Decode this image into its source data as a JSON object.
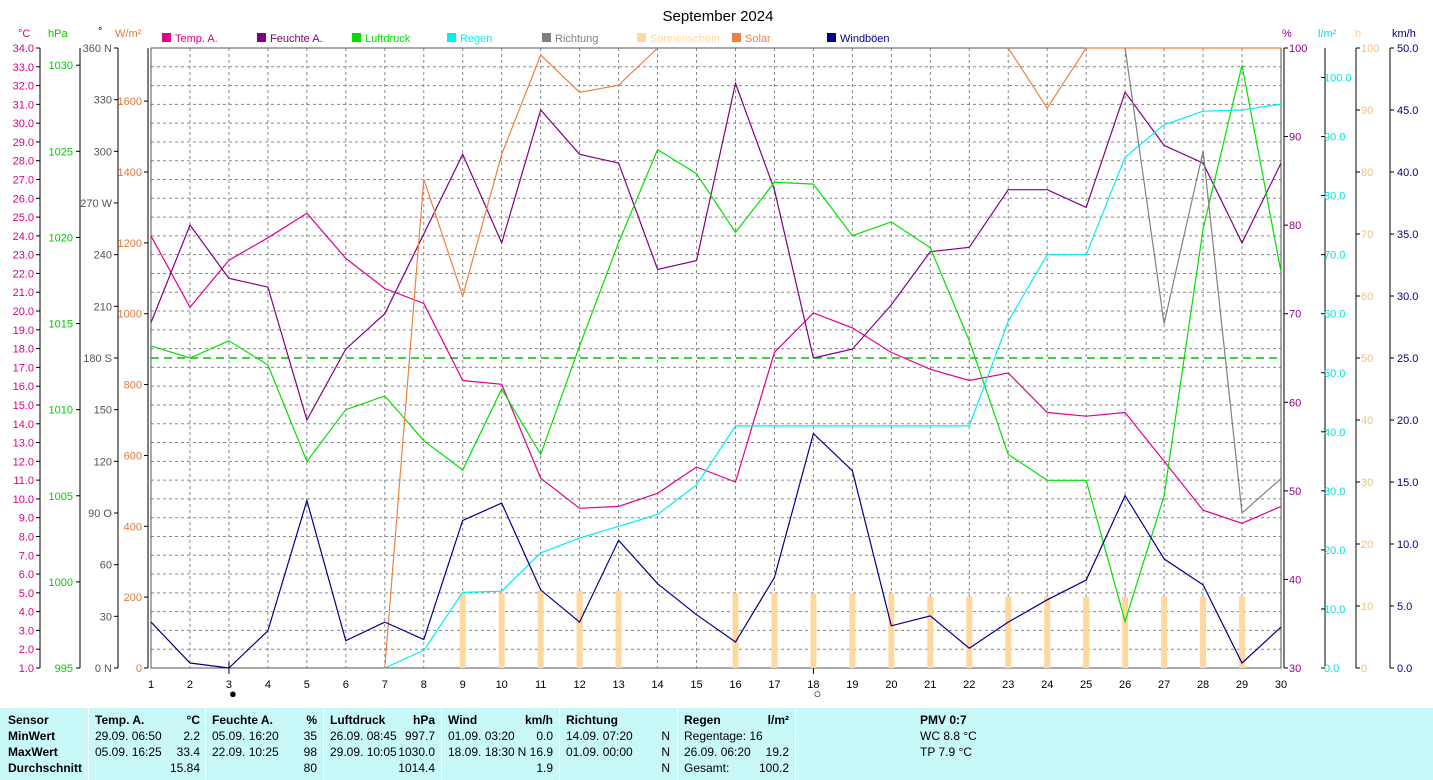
{
  "title": "September 2024",
  "axes": {
    "temp": {
      "unit": "°C",
      "color": "#e0008c",
      "min": 1.0,
      "max": 34.0,
      "step": 1.0
    },
    "pressure": {
      "unit": "hPa",
      "color": "#00cc00",
      "ticks": [
        995,
        1000,
        1005,
        1010,
        1015,
        1020,
        1025,
        1030
      ],
      "min": 995,
      "max": 1031
    },
    "direction": {
      "unit": "°",
      "ticks": [
        "0 N",
        "30",
        "60",
        "90 O",
        "120",
        "150",
        "180 S",
        "210",
        "240",
        "270 W",
        "300",
        "330",
        "360 N"
      ]
    },
    "solar": {
      "unit": "W/m²",
      "color": "#e0783c",
      "ticks": [
        0,
        200,
        400,
        600,
        800,
        1000,
        1200,
        1400,
        1600
      ],
      "max": 1750
    },
    "humidity": {
      "unit": "%",
      "color": "#8c008c",
      "ticks": [
        30,
        40,
        50,
        60,
        70,
        80,
        90,
        100
      ]
    },
    "rain": {
      "unit": "l/m²",
      "color": "#00e0e0",
      "ticks": [
        "0.0",
        "10.0",
        "20.0",
        "30.0",
        "40.0",
        "50.0",
        "60.0",
        "70.0",
        "80.0",
        "90.0",
        "100.0"
      ]
    },
    "sunshine": {
      "unit": "h",
      "color": "#ffd090",
      "ticks": [
        0,
        10,
        20,
        30,
        40,
        50,
        60,
        70,
        80,
        90,
        100
      ]
    },
    "gust": {
      "unit": "km/h",
      "color": "#000080",
      "ticks": [
        "0.0",
        "5.0",
        "10.0",
        "15.0",
        "20.0",
        "25.0",
        "30.0",
        "35.0",
        "40.0",
        "45.0",
        "50.0"
      ]
    }
  },
  "legend": [
    {
      "label": "Temp. A.",
      "color": "#e0008c"
    },
    {
      "label": "Feuchte A.",
      "color": "#800080"
    },
    {
      "label": "Luftdruck",
      "color": "#00e000"
    },
    {
      "label": "Regen",
      "color": "#00f0f0"
    },
    {
      "label": "Richtung",
      "color": "#808080"
    },
    {
      "label": "Sonnenschein",
      "color": "#ffd8a0"
    },
    {
      "label": "Solar",
      "color": "#f08040"
    },
    {
      "label": "Windböen",
      "color": "#000090"
    }
  ],
  "chart_data": {
    "type": "line",
    "title": "September 2024",
    "x": [
      1,
      2,
      3,
      4,
      5,
      6,
      7,
      8,
      9,
      10,
      11,
      12,
      13,
      14,
      15,
      16,
      17,
      18,
      19,
      20,
      21,
      22,
      23,
      24,
      25,
      26,
      27,
      28,
      29,
      30
    ],
    "series": [
      {
        "name": "Temp. A.",
        "color": "#e0008c",
        "axis": "temp",
        "values": [
          24.0,
          20.2,
          22.7,
          23.9,
          25.2,
          22.8,
          21.2,
          20.4,
          16.3,
          16.1,
          11.1,
          9.5,
          9.6,
          10.3,
          11.7,
          10.9,
          17.8,
          19.9,
          19.1,
          17.8,
          16.9,
          16.3,
          16.7,
          14.6,
          14.4,
          14.6,
          12.0,
          9.4,
          8.7,
          9.6
        ]
      },
      {
        "name": "Feuchte A.",
        "color": "#800080",
        "axis": "humidity",
        "values": [
          69,
          80,
          74,
          73,
          58,
          66,
          70,
          79,
          88,
          78,
          93,
          88,
          87,
          75,
          76,
          96,
          84,
          65,
          66,
          71,
          77,
          77.5,
          84,
          84,
          82,
          95,
          89,
          87,
          78,
          87
        ]
      },
      {
        "name": "Luftdruck",
        "color": "#00e000",
        "axis": "pressure",
        "values": [
          1013.7,
          1013.0,
          1014.0,
          1012.6,
          1007.0,
          1010.0,
          1010.8,
          1008.2,
          1006.5,
          1011.2,
          1007.4,
          1013.7,
          1019.7,
          1025.1,
          1023.7,
          1020.3,
          1023.2,
          1023.1,
          1020.1,
          1020.9,
          1019.4,
          1014.0,
          1007.4,
          1005.9,
          1005.9,
          997.7,
          1005.0,
          1020.5,
          1030.0,
          1018.0
        ]
      },
      {
        "name": "Regen",
        "color": "#00f0f0",
        "axis": "rain",
        "values": [
          null,
          null,
          null,
          null,
          null,
          null,
          0.0,
          3.0,
          12.8,
          13.0,
          19.5,
          22.0,
          24.0,
          26.0,
          31.0,
          41.0,
          41.0,
          41.0,
          41.0,
          41.0,
          41.0,
          41.0,
          58.7,
          70.0,
          70.0,
          86.5,
          92.0,
          94.3,
          94.5,
          95.5
        ]
      },
      {
        "name": "Richtung",
        "color": "#808080",
        "axis": "direction",
        "values": [
          null,
          null,
          null,
          null,
          null,
          null,
          null,
          null,
          null,
          null,
          null,
          null,
          null,
          null,
          null,
          null,
          null,
          null,
          null,
          null,
          null,
          null,
          null,
          null,
          null,
          360,
          200,
          300,
          90,
          110
        ]
      },
      {
        "name": "Solar",
        "color": "#f08040",
        "axis": "solar",
        "values": [
          null,
          null,
          null,
          null,
          null,
          null,
          0,
          1380,
          1050,
          1450,
          1730,
          1625,
          1645,
          1750,
          null,
          null,
          null,
          null,
          null,
          null,
          null,
          null,
          1750,
          1580,
          1750,
          1750,
          1750,
          1750,
          1750,
          1750
        ]
      },
      {
        "name": "Windböen",
        "color": "#000090",
        "axis": "gust",
        "values": [
          3.7,
          0.4,
          0.0,
          3.0,
          13.5,
          2.2,
          3.7,
          2.3,
          11.9,
          13.3,
          6.3,
          3.7,
          10.3,
          6.8,
          4.3,
          2.1,
          7.3,
          18.9,
          15.9,
          3.4,
          4.2,
          1.6,
          3.7,
          5.5,
          7.1,
          13.9,
          8.8,
          6.7,
          0.4,
          3.3
        ]
      },
      {
        "name": "Sonnenschein",
        "color": "#ffd8a0",
        "axis": "sunshine",
        "type": "bar",
        "values": [
          null,
          null,
          null,
          null,
          null,
          null,
          null,
          null,
          12,
          12,
          12.5,
          12.5,
          12.5,
          null,
          null,
          12,
          12,
          12,
          12,
          12,
          11.5,
          11.5,
          11.5,
          11.5,
          11.5,
          11.5,
          11.5,
          11.5,
          11.5,
          null
        ]
      }
    ],
    "reference_line": {
      "axis": "direction",
      "value": 180,
      "color": "#00c000"
    },
    "markers": [
      {
        "day": 3,
        "symbol": "●"
      },
      {
        "day": 18,
        "symbol": "○"
      }
    ]
  },
  "stats": {
    "sensor": {
      "header": "Sensor",
      "rows": [
        "MinWert",
        "MaxWert",
        "Durchschnitt"
      ]
    },
    "temp": {
      "header": "Temp. A.",
      "unit": "°C",
      "min": [
        "29.09.  06:50",
        "2.2"
      ],
      "max": [
        "05.09.  16:25",
        "33.4"
      ],
      "avg": "15.84"
    },
    "humidity": {
      "header": "Feuchte A.",
      "unit": "%",
      "min": [
        "05.09.  16:20",
        "35"
      ],
      "max": [
        "22.09.  10:25",
        "98"
      ],
      "avg": "80"
    },
    "pressure": {
      "header": "Luftdruck",
      "unit": "hPa",
      "min": [
        "26.09.  08:45",
        "997.7"
      ],
      "max": [
        "29.09.  10:05",
        "1030.0"
      ],
      "avg": "1014.4"
    },
    "wind": {
      "header": "Wind",
      "unit": "km/h",
      "min": [
        "01.09.  03:20",
        "0.0"
      ],
      "max": [
        "18.09.  18:30",
        "N 16.9"
      ],
      "avg": "1.9"
    },
    "direction": {
      "header": "Richtung",
      "min": [
        "14.09.  07:20",
        "N"
      ],
      "max": [
        "01.09.  00:00",
        "N"
      ],
      "avg": "N"
    },
    "rain": {
      "header": "Regen",
      "unit": "l/m²",
      "rows": [
        [
          "Regentage: 16",
          ""
        ],
        [
          "26.09.  06:20",
          "19.2"
        ],
        [
          "Gesamt:",
          "100.2"
        ]
      ]
    },
    "pmv": {
      "header": "PMV 0:7",
      "wc": "WC 8.8 °C",
      "tp": "TP 7.9 °C"
    }
  }
}
